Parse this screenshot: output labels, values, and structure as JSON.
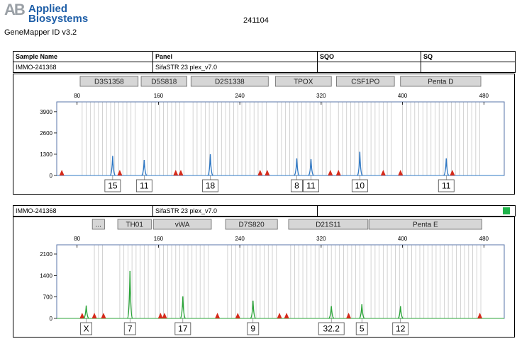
{
  "header": {
    "logo_mark": "AB",
    "brand_line1": "Applied",
    "brand_line2": "Biosystems",
    "software": "GeneMapper ID v3.2",
    "report_id": "241104"
  },
  "table": {
    "col_sample": "Sample Name",
    "col_panel": "Panel",
    "col_sqo": "SQO",
    "col_sq": "SQ"
  },
  "colors": {
    "peak_blue": "#2f78c4",
    "peak_green": "#2ca53a",
    "marker_red": "#d62a1a",
    "sq_green": "#1fb34a",
    "bin_line": "#c8c8c8",
    "locus_fill": "#d6d6d6",
    "frame": "#5a74a8"
  },
  "chart_data": [
    {
      "type": "line",
      "dye": "blue",
      "sample_name": "IMMO-241368",
      "panel": "SifaSTR 23 plex_v7.0",
      "xlim": [
        60,
        500
      ],
      "ylim": [
        0,
        4500
      ],
      "x_ticks": [
        80,
        160,
        240,
        320,
        400,
        480
      ],
      "y_ticks": [
        0,
        1300,
        2600,
        3900
      ],
      "loci": [
        {
          "label": "D3S1358",
          "start": 83,
          "end": 140
        },
        {
          "label": "D5S818",
          "start": 143,
          "end": 188
        },
        {
          "label": "D2S1338",
          "start": 192,
          "end": 268
        },
        {
          "label": "TPOX",
          "start": 275,
          "end": 330
        },
        {
          "label": "CSF1PO",
          "start": 335,
          "end": 392
        },
        {
          "label": "Penta D",
          "start": 398,
          "end": 477
        }
      ],
      "peaks": [
        {
          "x": 115,
          "height": 1200,
          "label": "15"
        },
        {
          "x": 146,
          "height": 950,
          "label": "11"
        },
        {
          "x": 211,
          "height": 1300,
          "label": "18"
        },
        {
          "x": 296,
          "height": 1050,
          "label": "8"
        },
        {
          "x": 310,
          "height": 1000,
          "label": "11"
        },
        {
          "x": 358,
          "height": 1450,
          "label": "10"
        },
        {
          "x": 443,
          "height": 1050,
          "label": "11"
        }
      ],
      "markers": [
        65,
        122,
        177,
        182,
        260,
        267,
        329,
        337,
        381,
        398,
        449
      ]
    },
    {
      "type": "line",
      "dye": "green",
      "sample_name": "IMMO-241368",
      "panel": "SifaSTR 23 plex_v7.0",
      "xlim": [
        60,
        500
      ],
      "ylim": [
        0,
        2400
      ],
      "x_ticks": [
        80,
        160,
        240,
        320,
        400,
        480
      ],
      "y_ticks": [
        0,
        700,
        1400,
        2100
      ],
      "loci": [
        {
          "label": "...",
          "start": 95,
          "end": 107
        },
        {
          "label": "TH01",
          "start": 120,
          "end": 153
        },
        {
          "label": "vWA",
          "start": 155,
          "end": 212
        },
        {
          "label": "D7S820",
          "start": 226,
          "end": 277
        },
        {
          "label": "D21S11",
          "start": 288,
          "end": 366
        },
        {
          "label": "Penta E",
          "start": 367,
          "end": 478
        }
      ],
      "peaks": [
        {
          "x": 89,
          "height": 420,
          "label": "X"
        },
        {
          "x": 132,
          "height": 1550,
          "label": "7"
        },
        {
          "x": 184,
          "height": 720,
          "label": "17"
        },
        {
          "x": 253,
          "height": 580,
          "label": "9"
        },
        {
          "x": 330,
          "height": 400,
          "label": "32.2"
        },
        {
          "x": 360,
          "height": 460,
          "label": "5"
        },
        {
          "x": 398,
          "height": 400,
          "label": "12"
        }
      ],
      "markers": [
        85,
        97,
        106,
        162,
        166,
        218,
        238,
        279,
        286,
        347,
        476
      ]
    }
  ]
}
